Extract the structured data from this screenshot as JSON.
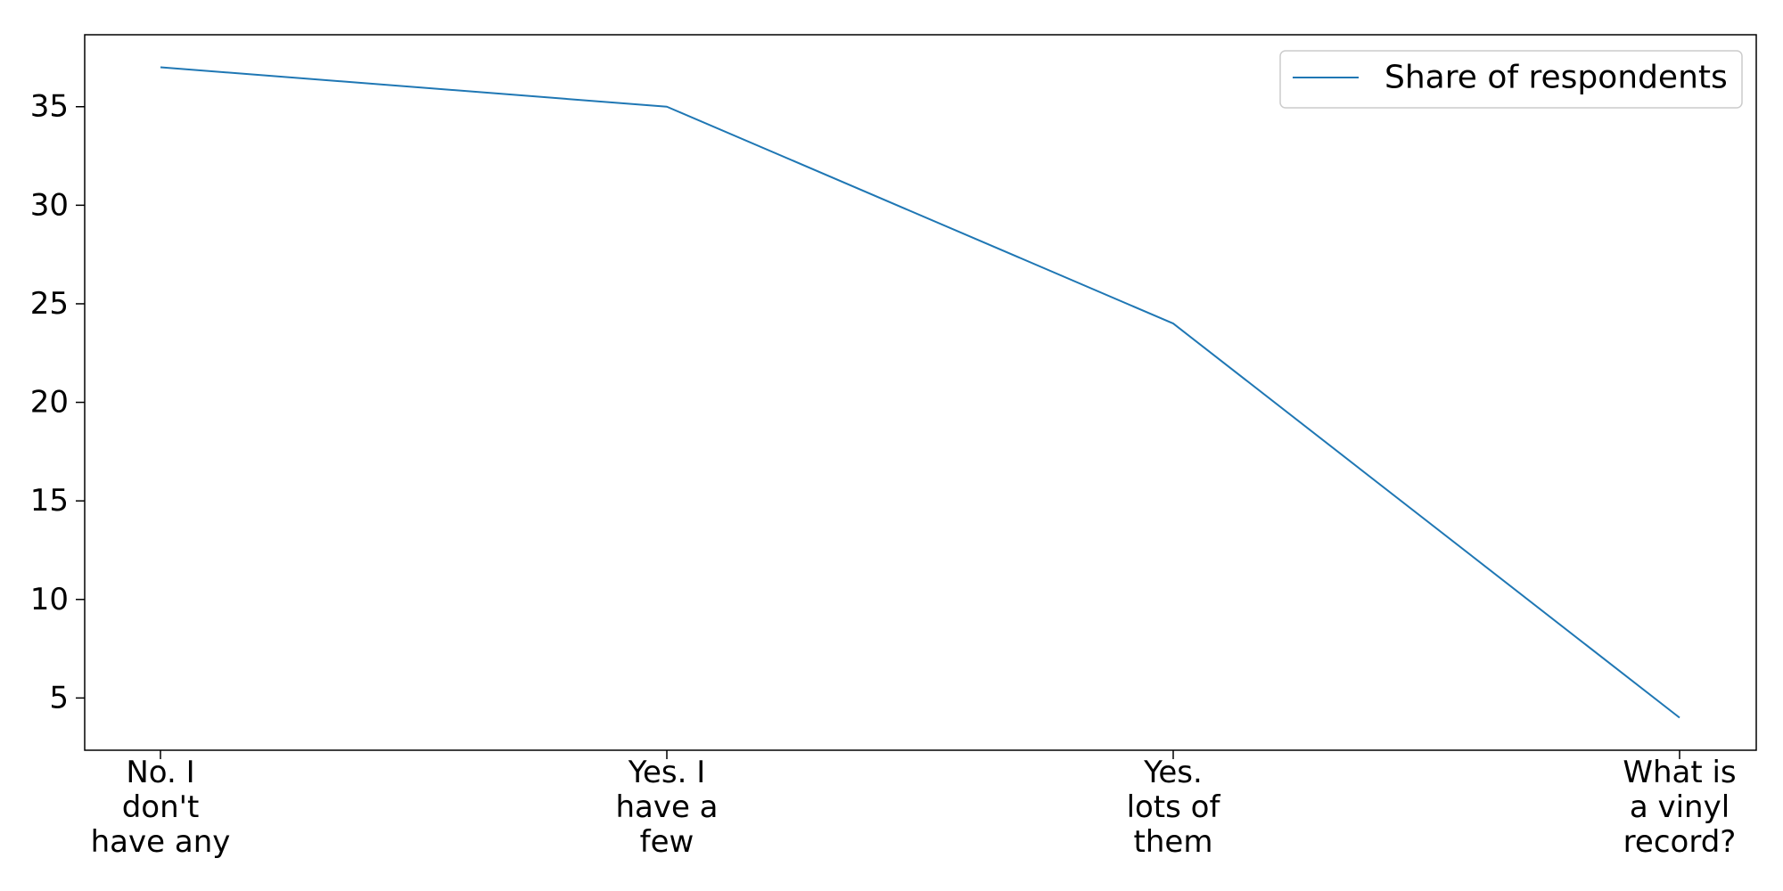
{
  "chart_data": {
    "type": "line",
    "categories": [
      [
        "No. I",
        "don't",
        "have any"
      ],
      [
        "Yes. I",
        "have a",
        "few"
      ],
      [
        "Yes.",
        "lots of",
        "them"
      ],
      [
        "What is",
        "a vinyl",
        "record?"
      ]
    ],
    "series": [
      {
        "name": "Share of respondents",
        "values": [
          37,
          35,
          24,
          4
        ],
        "color": "#1f77b4"
      }
    ],
    "title": "",
    "xlabel": "",
    "ylabel": "",
    "ylim": [
      2.35,
      38.65
    ],
    "yticks": [
      5,
      10,
      15,
      20,
      25,
      30,
      35
    ],
    "grid": false,
    "legend": "top-right"
  }
}
